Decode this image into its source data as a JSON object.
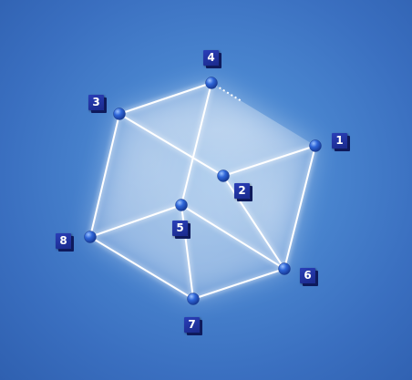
{
  "colors": {
    "background": "#4a86d0",
    "edge": "#ffffff",
    "vertex": "#2f66d8",
    "label_box": "#1f2f9e",
    "label_text": "#ffffff"
  },
  "vertices": [
    {
      "id": "1",
      "label": "1"
    },
    {
      "id": "2",
      "label": "2"
    },
    {
      "id": "3",
      "label": "3"
    },
    {
      "id": "4",
      "label": "4"
    },
    {
      "id": "5",
      "label": "5"
    },
    {
      "id": "6",
      "label": "6"
    },
    {
      "id": "7",
      "label": "7"
    },
    {
      "id": "8",
      "label": "8"
    }
  ],
  "edges": [
    [
      "3",
      "4"
    ],
    [
      "3",
      "2"
    ],
    [
      "2",
      "1"
    ],
    [
      "4",
      "5"
    ],
    [
      "2",
      "6"
    ],
    [
      "3",
      "8"
    ],
    [
      "1",
      "6"
    ],
    [
      "8",
      "5"
    ],
    [
      "5",
      "6"
    ],
    [
      "8",
      "7"
    ],
    [
      "7",
      "6"
    ],
    [
      "5",
      "7"
    ]
  ],
  "hidden_edges": [
    [
      "4",
      "1"
    ]
  ]
}
